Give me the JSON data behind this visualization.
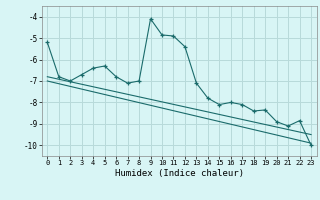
{
  "xlabel": "Humidex (Indice chaleur)",
  "ylabel": "",
  "background_color": "#d8f5f5",
  "grid_color": "#b8dada",
  "line_color": "#1a6b6b",
  "xlim": [
    -0.5,
    23.5
  ],
  "ylim": [
    -10.5,
    -3.5
  ],
  "yticks": [
    -10,
    -9,
    -8,
    -7,
    -6,
    -5,
    -4
  ],
  "xticks": [
    0,
    1,
    2,
    3,
    4,
    5,
    6,
    7,
    8,
    9,
    10,
    11,
    12,
    13,
    14,
    15,
    16,
    17,
    18,
    19,
    20,
    21,
    22,
    23
  ],
  "line1_x": [
    0,
    1,
    2,
    3,
    4,
    5,
    6,
    7,
    8,
    9,
    10,
    11,
    12,
    13,
    14,
    15,
    16,
    17,
    18,
    19,
    20,
    21,
    22,
    23
  ],
  "line1_y": [
    -5.2,
    -6.8,
    -7.0,
    -6.7,
    -6.4,
    -6.3,
    -6.8,
    -7.1,
    -7.0,
    -4.1,
    -4.85,
    -4.9,
    -5.4,
    -7.1,
    -7.8,
    -8.1,
    -8.0,
    -8.1,
    -8.4,
    -8.35,
    -8.9,
    -9.1,
    -8.85,
    -10.0
  ],
  "line2_x": [
    0,
    23
  ],
  "line2_y": [
    -6.8,
    -9.5
  ],
  "line3_x": [
    0,
    23
  ],
  "line3_y": [
    -7.0,
    -9.9
  ]
}
